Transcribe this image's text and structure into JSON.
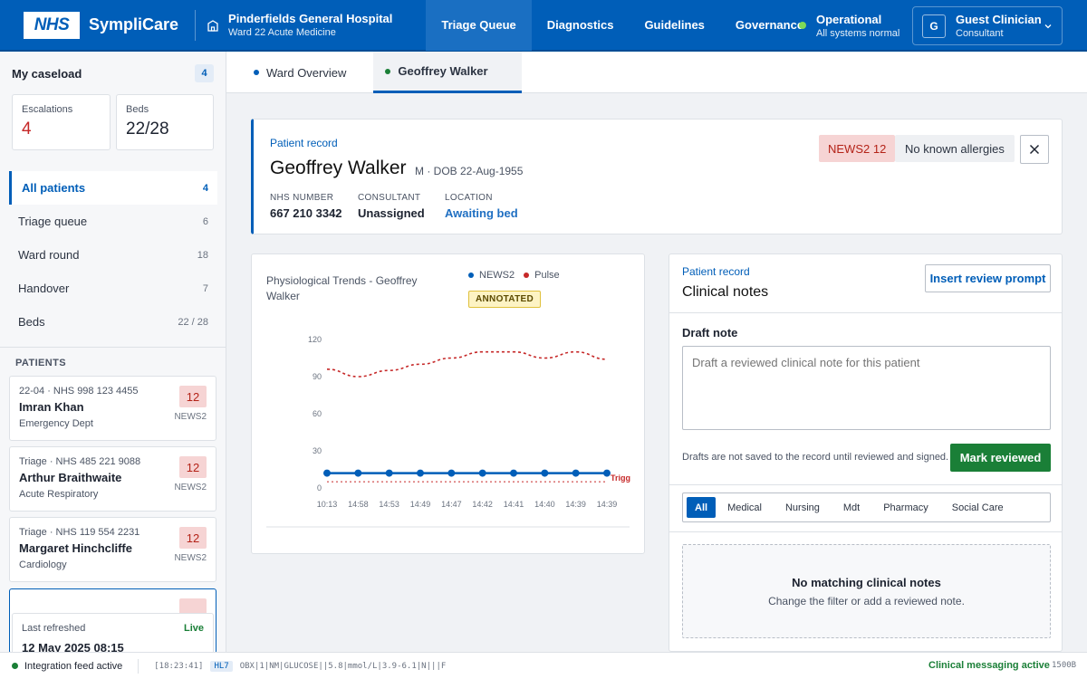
{
  "header": {
    "logo": "NHS",
    "brand": "SympliCare",
    "hospital": "Pinderfields General Hospital",
    "ward": "Ward 22 Acute Medicine",
    "nav": [
      "Triage Queue",
      "Diagnostics",
      "Guidelines",
      "Governance"
    ],
    "status_title": "Operational",
    "status_sub": "All systems normal",
    "user_initial": "G",
    "user_name": "Guest Clinician",
    "user_role": "Consultant"
  },
  "sidebar": {
    "caseload_title": "My caseload",
    "caseload_count": "4",
    "escalations_label": "Escalations",
    "escalations_value": "4",
    "beds_label": "Beds",
    "beds_value": "22/28",
    "items": [
      {
        "label": "All patients",
        "count": "4"
      },
      {
        "label": "Triage queue",
        "count": "6"
      },
      {
        "label": "Ward round",
        "count": "18"
      },
      {
        "label": "Handover",
        "count": "7"
      },
      {
        "label": "Beds",
        "count": "22 / 28"
      }
    ],
    "patients_header": "PATIENTS",
    "patients": [
      {
        "meta": "22-04 · NHS 998 123 4455",
        "name": "Imran Khan",
        "dept": "Emergency Dept",
        "score": "12",
        "score_label": "NEWS2"
      },
      {
        "meta": "Triage · NHS 485 221 9088",
        "name": "Arthur Braithwaite",
        "dept": "Acute Respiratory",
        "score": "12",
        "score_label": "NEWS2"
      },
      {
        "meta": "Triage · NHS 119 554 2231",
        "name": "Margaret Hinchcliffe",
        "dept": "Cardiology",
        "score": "12",
        "score_label": "NEWS2"
      }
    ],
    "refresh_label": "Last refreshed",
    "refresh_live": "Live",
    "refresh_date": "12 May 2025 08:15"
  },
  "tabs": [
    "Ward Overview",
    "Geoffrey Walker"
  ],
  "record": {
    "kicker": "Patient record",
    "name": "Geoffrey Walker",
    "dob": "M · DOB 22-Aug-1955",
    "news_badge": "NEWS2 12",
    "allergy_badge": "No known allergies",
    "fields": [
      {
        "key": "NHS NUMBER",
        "value": "667 210 3342"
      },
      {
        "key": "CONSULTANT",
        "value": "Unassigned"
      },
      {
        "key": "LOCATION",
        "value": "Awaiting bed"
      }
    ]
  },
  "chart_data": {
    "type": "line",
    "title": "Physiological Trends - Geoffrey Walker",
    "annotation": "ANNOTATED",
    "x": [
      "10:13",
      "14:58",
      "14:53",
      "14:49",
      "14:47",
      "14:42",
      "14:41",
      "14:40",
      "14:39",
      "14:39"
    ],
    "yticks": [
      0,
      30,
      60,
      90,
      120
    ],
    "ylim": [
      0,
      120
    ],
    "threshold_label": "Trigg",
    "threshold_value": 5,
    "series": [
      {
        "name": "NEWS2",
        "color": "#005eb8",
        "values": [
          12,
          12,
          12,
          12,
          12,
          12,
          12,
          12,
          12,
          12
        ]
      },
      {
        "name": "Pulse",
        "color": "#c62828",
        "values": [
          96,
          90,
          95,
          100,
          105,
          110,
          110,
          105,
          110,
          104
        ]
      }
    ]
  },
  "notes": {
    "kicker": "Patient record",
    "title": "Clinical notes",
    "prompt_button": "Insert review prompt",
    "draft_label": "Draft note",
    "draft_placeholder": "Draft a reviewed clinical note for this patient",
    "hint": "Drafts are not saved to the record until reviewed and signed.",
    "review_button": "Mark reviewed",
    "filters": [
      "All",
      "Medical",
      "Nursing",
      "Mdt",
      "Pharmacy",
      "Social Care"
    ],
    "empty_title": "No matching clinical notes",
    "empty_sub": "Change the filter or add a reviewed note."
  },
  "footer": {
    "feed": "Integration feed active",
    "time": "[18:23:41]",
    "tag": "HL7",
    "message": "OBX|1|NM|GLUCOSE||5.8|mmol/L|3.9-6.1|N|||F",
    "messaging": "Clinical messaging active",
    "latency": "1500B"
  }
}
